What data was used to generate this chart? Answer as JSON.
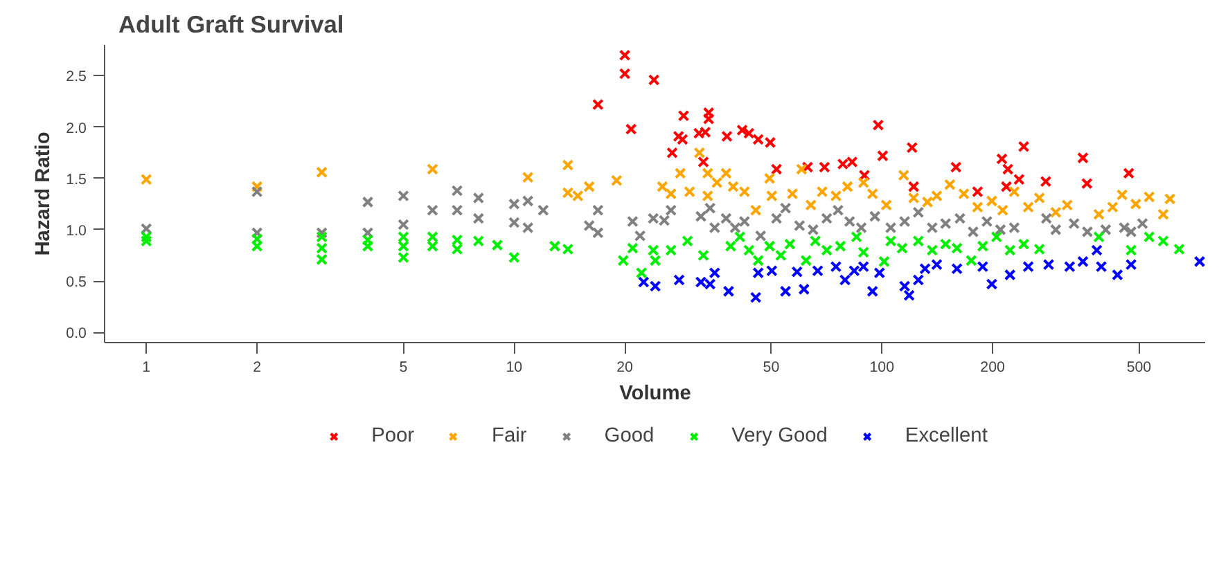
{
  "chart_data": {
    "type": "scatter",
    "title": "Adult Graft Survival",
    "xlabel": "Volume",
    "ylabel": "Hazard Ratio",
    "log": "x",
    "grid": false,
    "legend": "bottom",
    "marker": "cross",
    "xlim": [
      0.77,
      760
    ],
    "ylim": [
      -0.1,
      2.8
    ],
    "xticks": [
      1,
      2,
      5,
      10,
      20,
      50,
      100,
      200,
      500
    ],
    "yticks": [
      {
        "value": 0,
        "label": "0.0"
      },
      0.5,
      {
        "value": 1,
        "label": "1.0"
      },
      1.5,
      {
        "value": 2,
        "label": "2.0"
      },
      2.5
    ],
    "series": [
      {
        "name": "Poor",
        "color": "#ff0000",
        "x": [
          16.9,
          20.0,
          20.0,
          24.0,
          20.8,
          28.9,
          28.0,
          26.9,
          28.7,
          31.8,
          33.1,
          33.8,
          33.8,
          32.7,
          37.9,
          41.7,
          43.5,
          46.1,
          49.7,
          51.7,
          62.8,
          69.8,
          78.3,
          83.0,
          89.6,
          97.7,
          100.5,
          120.8,
          122,
          159,
          182,
          212,
          220,
          243,
          236,
          218,
          279,
          352,
          361,
          469
        ],
        "values": [
          2.22,
          2.7,
          2.52,
          2.46,
          1.98,
          2.11,
          1.91,
          1.75,
          1.88,
          1.94,
          1.95,
          2.14,
          2.08,
          1.66,
          1.91,
          1.97,
          1.94,
          1.88,
          1.85,
          1.59,
          1.61,
          1.61,
          1.64,
          1.66,
          1.53,
          2.02,
          1.72,
          1.8,
          1.42,
          1.61,
          1.37,
          1.69,
          1.59,
          1.81,
          1.49,
          1.42,
          1.47,
          1.7,
          1.45,
          1.55
        ]
      },
      {
        "name": "Fair",
        "color": "#ffa500",
        "x": [
          1.0,
          2.0,
          3.0,
          6.0,
          10.9,
          14.0,
          14.0,
          14.9,
          16.0,
          19.0,
          25.3,
          26.7,
          28.3,
          30.0,
          31.9,
          33.6,
          33.6,
          35.6,
          37.7,
          39.4,
          42.3,
          45.4,
          49.5,
          50.2,
          57.1,
          60.5,
          64.1,
          68.8,
          75.0,
          80.6,
          89.1,
          94.3,
          102.8,
          114.6,
          122,
          133,
          141,
          153,
          167,
          182,
          199,
          213,
          229,
          250,
          268,
          297,
          319,
          389,
          424,
          450,
          490,
          533,
          582,
          607
        ],
        "values": [
          1.49,
          1.42,
          1.56,
          1.59,
          1.51,
          1.63,
          1.36,
          1.33,
          1.42,
          1.48,
          1.42,
          1.35,
          1.55,
          1.37,
          1.75,
          1.55,
          1.33,
          1.46,
          1.55,
          1.42,
          1.37,
          1.19,
          1.5,
          1.33,
          1.35,
          1.59,
          1.24,
          1.37,
          1.33,
          1.42,
          1.46,
          1.35,
          1.24,
          1.53,
          1.31,
          1.27,
          1.33,
          1.44,
          1.35,
          1.22,
          1.28,
          1.19,
          1.37,
          1.22,
          1.31,
          1.17,
          1.24,
          1.15,
          1.22,
          1.34,
          1.25,
          1.32,
          1.15,
          1.3
        ]
      },
      {
        "name": "Good",
        "color": "#808080",
        "x": [
          1.0,
          2.0,
          2.0,
          3.0,
          4.0,
          4.0,
          5.0,
          5.0,
          6.0,
          7.0,
          7.0,
          8.0,
          8.0,
          10,
          10,
          10.9,
          10.9,
          12,
          16,
          16.9,
          16.9,
          21,
          22,
          23.9,
          25.6,
          26.7,
          32.2,
          34.1,
          35.1,
          37.7,
          39.9,
          42.3,
          46.8,
          51.7,
          54.7,
          59.7,
          65,
          70.8,
          76,
          81.7,
          87.9,
          95.7,
          105.7,
          115.3,
          125.6,
          137,
          149,
          163,
          177,
          193,
          210,
          229,
          280,
          297,
          333,
          362,
          406,
          456,
          476,
          511
        ],
        "values": [
          1.01,
          1.37,
          0.97,
          0.97,
          1.27,
          0.97,
          1.33,
          1.05,
          1.19,
          1.38,
          1.19,
          1.31,
          1.11,
          1.25,
          1.07,
          1.28,
          1.02,
          1.19,
          1.04,
          1.19,
          0.97,
          1.08,
          0.94,
          1.11,
          1.09,
          1.19,
          1.13,
          1.21,
          1.02,
          1.11,
          1.02,
          1.08,
          0.94,
          1.11,
          1.21,
          1.04,
          1.0,
          1.11,
          1.19,
          1.08,
          1.02,
          1.13,
          1.02,
          1.08,
          1.17,
          1.02,
          1.06,
          1.11,
          0.98,
          1.08,
          1.0,
          1.02,
          1.11,
          1.0,
          1.06,
          0.98,
          1.0,
          1.02,
          0.98,
          1.06
        ]
      },
      {
        "name": "Very Good",
        "color": "#00ee00",
        "x": [
          1,
          1,
          2,
          2,
          3,
          3,
          3,
          4,
          4,
          5,
          5,
          5,
          6,
          6,
          7,
          7,
          8,
          9.0,
          10,
          12.9,
          14,
          19.8,
          21,
          22.2,
          23.9,
          24.2,
          26.7,
          29.6,
          32.7,
          38.8,
          41.1,
          43.5,
          46.1,
          49.5,
          53.1,
          56.2,
          62.2,
          65.9,
          70.8,
          77.1,
          85.3,
          89.1,
          101.4,
          105.7,
          113.5,
          125.6,
          137,
          149,
          160,
          175,
          188,
          205,
          223,
          243,
          268,
          389,
          476,
          533,
          582,
          643
        ],
        "values": [
          0.93,
          0.89,
          0.91,
          0.84,
          0.93,
          0.82,
          0.71,
          0.9,
          0.84,
          0.93,
          0.84,
          0.73,
          0.93,
          0.84,
          0.9,
          0.81,
          0.89,
          0.85,
          0.73,
          0.84,
          0.81,
          0.7,
          0.82,
          0.58,
          0.8,
          0.7,
          0.8,
          0.89,
          0.75,
          0.84,
          0.93,
          0.8,
          0.7,
          0.84,
          0.75,
          0.86,
          0.7,
          0.89,
          0.8,
          0.84,
          0.93,
          0.78,
          0.69,
          0.89,
          0.82,
          0.89,
          0.8,
          0.86,
          0.82,
          0.7,
          0.84,
          0.93,
          0.8,
          0.86,
          0.81,
          0.93,
          0.8,
          0.93,
          0.89,
          0.81
        ]
      },
      {
        "name": "Excellent",
        "color": "#0000ff",
        "x": [
          22.5,
          24.2,
          28.1,
          32.2,
          34.1,
          35.1,
          38.3,
          45.4,
          46.1,
          50.2,
          54.7,
          58.8,
          61.4,
          66.9,
          75,
          79.4,
          84.1,
          89.1,
          94.3,
          98.5,
          115.3,
          118.6,
          125.6,
          131,
          141,
          160,
          188,
          199,
          223,
          250,
          284,
          324,
          352,
          384,
          395,
          437,
          476,
          731
        ],
        "values": [
          0.49,
          0.45,
          0.51,
          0.49,
          0.47,
          0.58,
          0.4,
          0.34,
          0.58,
          0.6,
          0.4,
          0.59,
          0.42,
          0.6,
          0.64,
          0.51,
          0.6,
          0.64,
          0.4,
          0.58,
          0.45,
          0.36,
          0.51,
          0.62,
          0.66,
          0.62,
          0.64,
          0.47,
          0.56,
          0.64,
          0.66,
          0.64,
          0.69,
          0.8,
          0.64,
          0.56,
          0.66,
          0.69
        ]
      }
    ]
  }
}
